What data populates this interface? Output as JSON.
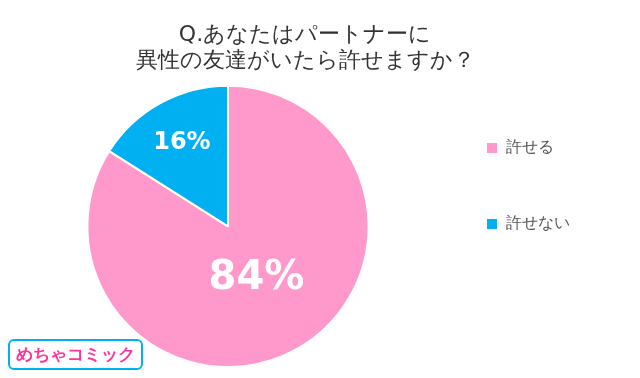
{
  "chart_data": {
    "type": "pie",
    "title": [
      "Q.あなたはパートナーに",
      "異性の友達がいたら許せますか？"
    ],
    "categories": [
      "許せる",
      "許せない"
    ],
    "values": [
      84,
      16
    ],
    "value_labels": [
      "84%",
      "16%"
    ],
    "colors": [
      "#ff99cc",
      "#00b0f0"
    ],
    "data_labels": true,
    "legend": "right",
    "annotations": [
      "めちゃコミック"
    ]
  }
}
